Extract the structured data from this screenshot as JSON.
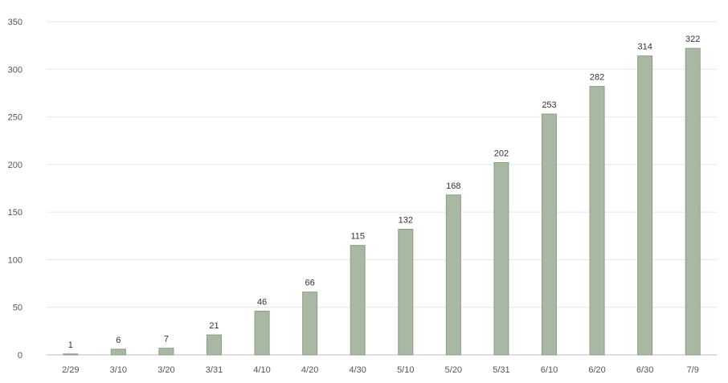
{
  "chart_data": {
    "type": "bar",
    "title": "",
    "xlabel": "",
    "ylabel": "",
    "categories": [
      "2/29",
      "3/10",
      "3/20",
      "3/31",
      "4/10",
      "4/20",
      "4/30",
      "5/10",
      "5/20",
      "5/31",
      "6/10",
      "6/20",
      "6/30",
      "7/9"
    ],
    "values": [
      1,
      6,
      7,
      21,
      46,
      66,
      115,
      132,
      168,
      202,
      253,
      282,
      314,
      322
    ],
    "data_labels": [
      "1",
      "6",
      "7",
      "21",
      "46",
      "66",
      "115",
      "132",
      "168",
      "202",
      "253",
      "282",
      "314",
      "322"
    ],
    "ylim": [
      0,
      350
    ],
    "yticks": [
      0,
      50,
      100,
      150,
      200,
      250,
      300,
      350
    ],
    "ytick_labels": [
      "0",
      "50",
      "100",
      "150",
      "200",
      "250",
      "300",
      "350"
    ],
    "grid": true,
    "legend": "none",
    "bar_color": "#a9b8a3",
    "bar_edge_color": "#8e9c88"
  }
}
